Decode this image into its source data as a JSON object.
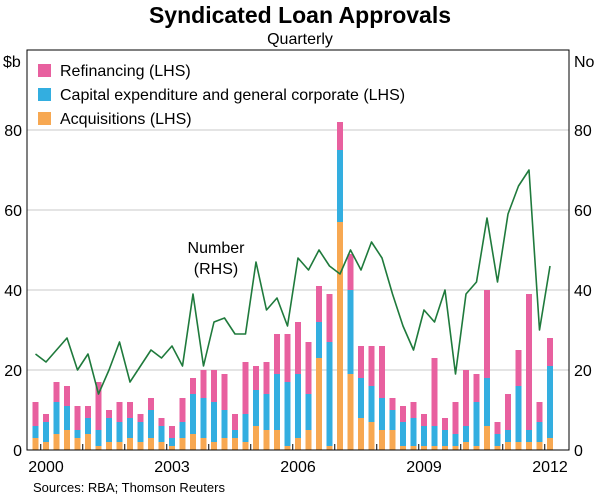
{
  "chart_data": {
    "type": "bar",
    "title": "Syndicated Loan Approvals",
    "subtitle": "Quarterly",
    "left_unit": "$b",
    "right_unit": "No",
    "ylim_left": [
      0,
      100
    ],
    "ylim_right": [
      0,
      100
    ],
    "y_ticks_left": [
      "0",
      "20",
      "40",
      "60",
      "80"
    ],
    "y_ticks_right": [
      "0",
      "20",
      "40",
      "60",
      "80"
    ],
    "x_ticks": [
      "2000",
      "2003",
      "2006",
      "2009",
      "2012"
    ],
    "x_start_year": 1999.75,
    "stacked": true,
    "colors": {
      "refinancing": "#e8609f",
      "capex": "#33aee0",
      "acquisitions": "#f7a852",
      "number": "#1f7a3c"
    },
    "legend": [
      {
        "key": "refinancing",
        "label": "Refinancing (LHS)"
      },
      {
        "key": "capex",
        "label": "Capital expenditure and general corporate (LHS)"
      },
      {
        "key": "acquisitions",
        "label": "Acquisitions (LHS)"
      }
    ],
    "annotation": {
      "line1": "Number",
      "line2": "(RHS)"
    },
    "series": [
      {
        "name": "Acquisitions (LHS)",
        "key": "acquisitions",
        "values": [
          3,
          2,
          4,
          5,
          3,
          4,
          1,
          2,
          2,
          3,
          2,
          3,
          2,
          1,
          3,
          4,
          3,
          2,
          3,
          3,
          2,
          6,
          5,
          5,
          1,
          3,
          5,
          23,
          1,
          57,
          19,
          8,
          7,
          5,
          5,
          1,
          1,
          1,
          1,
          1,
          1,
          2,
          1,
          6,
          1,
          2,
          2,
          2,
          2,
          3
        ]
      },
      {
        "name": "Capital expenditure and general corporate (LHS)",
        "key": "capex",
        "values": [
          3,
          5,
          8,
          6,
          2,
          4,
          4,
          6,
          5,
          5,
          5,
          7,
          4,
          2,
          4,
          10,
          10,
          10,
          7,
          2,
          7,
          9,
          9,
          14,
          16,
          16,
          9,
          9,
          26,
          18,
          21,
          10,
          9,
          8,
          5,
          6,
          7,
          5,
          5,
          4,
          3,
          4,
          11,
          12,
          3,
          3,
          14,
          3,
          5,
          18
        ]
      },
      {
        "name": "Refinancing (LHS)",
        "key": "refinancing",
        "values": [
          6,
          2,
          5,
          5,
          6,
          3,
          12,
          2,
          5,
          4,
          2,
          3,
          2,
          3,
          6,
          4,
          7,
          8,
          9,
          4,
          13,
          6,
          8,
          10,
          12,
          13,
          13,
          9,
          12,
          7,
          9,
          8,
          10,
          13,
          3,
          4,
          4,
          3,
          17,
          3,
          8,
          14,
          7,
          22,
          3,
          9,
          9,
          34,
          5,
          7
        ]
      },
      {
        "name": "Number (RHS)",
        "key": "number",
        "type": "line",
        "values": [
          24,
          22,
          25,
          28,
          20,
          24,
          14,
          20,
          27,
          17,
          21,
          25,
          23,
          26,
          21,
          39,
          21,
          32,
          33,
          29,
          29,
          47,
          35,
          38,
          31,
          48,
          45,
          50,
          46,
          44,
          50,
          45,
          52,
          48,
          39,
          31,
          25,
          35,
          32,
          40,
          19,
          39,
          42,
          58,
          42,
          59,
          66,
          70,
          30,
          46
        ]
      }
    ]
  },
  "source": "Sources: RBA; Thomson Reuters"
}
